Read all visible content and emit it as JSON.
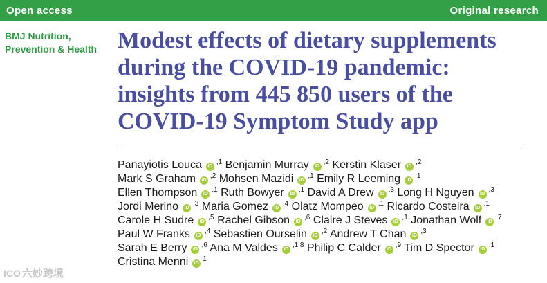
{
  "banner": {
    "left_label": "Open access",
    "right_label": "Original research",
    "color": "#33a047"
  },
  "journal": {
    "lines": [
      "BMJ Nutrition,",
      "Prevention & Health"
    ],
    "color": "#2f9a44"
  },
  "title": {
    "lines": [
      "Modest effects of dietary supplements",
      "during the COVID-19 pandemic:",
      "insights from 445 850 users of the",
      "COVID-19 Symptom Study app"
    ],
    "color": "#4a4ea0"
  },
  "orcid_badge": {
    "text": "iD",
    "color": "#a6ce39"
  },
  "authors": [
    [
      {
        "name": "Panayiotis Louca",
        "orcid": true,
        "aff": ",1"
      },
      {
        "name": "Benjamin Murray",
        "orcid": true,
        "aff": ",2"
      },
      {
        "name": "Kerstin Klaser",
        "orcid": true,
        "aff": ",2"
      }
    ],
    [
      {
        "name": "Mark S Graham",
        "orcid": true,
        "aff": ",2"
      },
      {
        "name": "Mohsen Mazidi",
        "orcid": true,
        "aff": ",1"
      },
      {
        "name": "Emily R Leeming",
        "orcid": true,
        "aff": ",1"
      }
    ],
    [
      {
        "name": "Ellen Thompson",
        "orcid": true,
        "aff": ",1"
      },
      {
        "name": "Ruth Bowyer",
        "orcid": true,
        "aff": ",1"
      },
      {
        "name": "David A Drew",
        "orcid": true,
        "aff": ",3"
      },
      {
        "name": "Long H Nguyen",
        "orcid": true,
        "aff": ",3"
      }
    ],
    [
      {
        "name": "Jordi Merino",
        "orcid": true,
        "aff": ",3"
      },
      {
        "name": "Maria Gomez",
        "orcid": true,
        "aff": ",4"
      },
      {
        "name": "Olatz Mompeo",
        "orcid": true,
        "aff": ",1"
      },
      {
        "name": "Ricardo Costeira",
        "orcid": true,
        "aff": ",1"
      }
    ],
    [
      {
        "name": "Carole H Sudre",
        "orcid": true,
        "aff": ",5"
      },
      {
        "name": "Rachel Gibson",
        "orcid": true,
        "aff": ",6"
      },
      {
        "name": "Claire J Steves",
        "orcid": true,
        "aff": ",1"
      },
      {
        "name": "Jonathan Wolf",
        "orcid": true,
        "aff": ",7"
      }
    ],
    [
      {
        "name": "Paul W Franks",
        "orcid": true,
        "aff": ",4"
      },
      {
        "name": "Sebastien Ourselin",
        "orcid": true,
        "aff": ",2"
      },
      {
        "name": "Andrew T Chan",
        "orcid": true,
        "aff": ",3"
      }
    ],
    [
      {
        "name": "Sarah E Berry",
        "orcid": true,
        "aff": ",6"
      },
      {
        "name": "Ana M Valdes",
        "orcid": true,
        "aff": ",1,8"
      },
      {
        "name": "Philip C Calder",
        "orcid": true,
        "aff": ",9"
      },
      {
        "name": "Tim D Spector",
        "orcid": true,
        "aff": ",1"
      }
    ],
    [
      {
        "name": "Cristina Menni",
        "orcid": true,
        "aff": "1"
      }
    ]
  ],
  "watermark": {
    "icon": "ICO",
    "text": "六妙跨境"
  }
}
